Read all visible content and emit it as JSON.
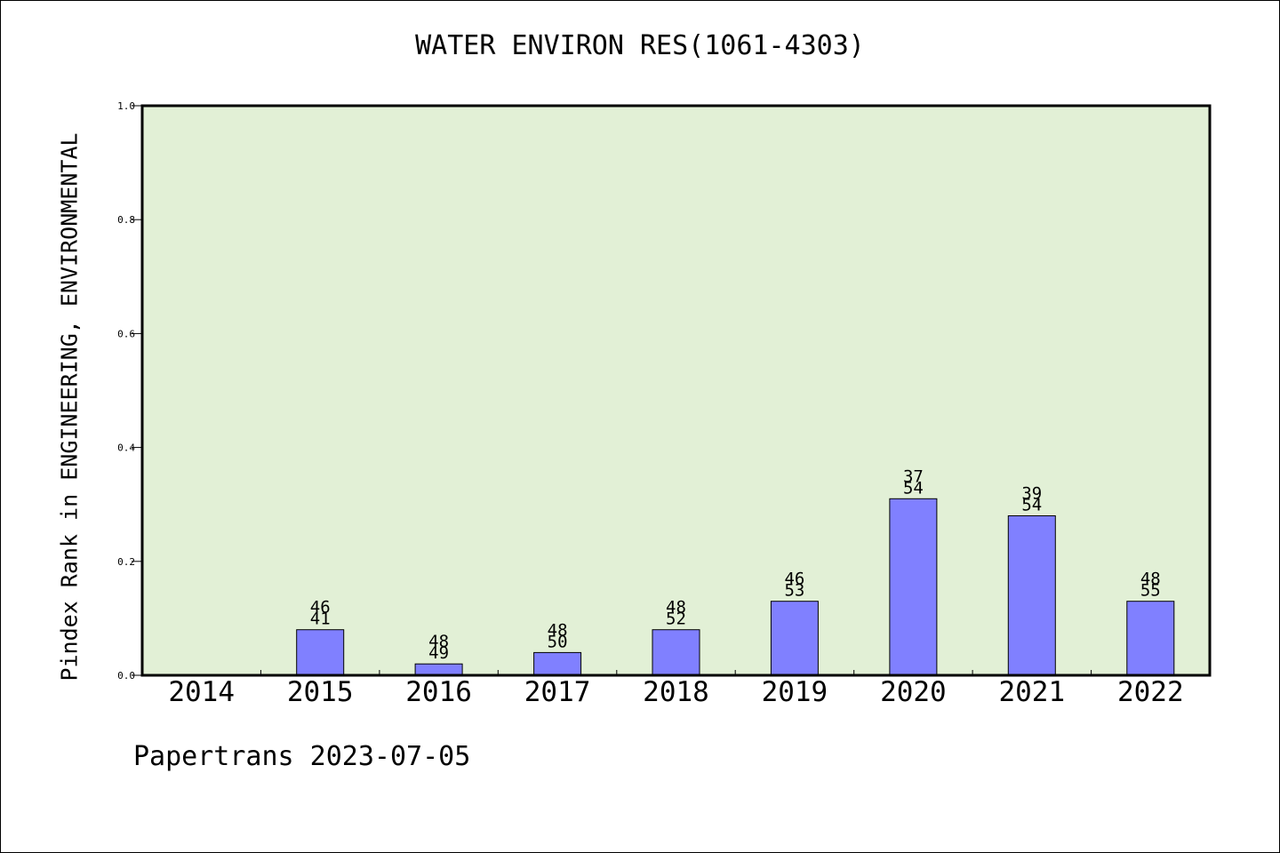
{
  "chart_data": {
    "type": "bar",
    "title": "WATER ENVIRON RES(1061-4303)",
    "xlabel": "",
    "ylabel": "Pindex Rank in ENGINEERING, ENVIRONMENTAL",
    "categories": [
      "2014",
      "2015",
      "2016",
      "2017",
      "2018",
      "2019",
      "2020",
      "2021",
      "2022"
    ],
    "values": [
      0,
      0.08,
      0.02,
      0.04,
      0.08,
      0.13,
      0.31,
      0.28,
      0.13
    ],
    "bar_labels": [
      [],
      [
        "46",
        "41"
      ],
      [
        "48",
        "49"
      ],
      [
        "48",
        "50"
      ],
      [
        "48",
        "52"
      ],
      [
        "46",
        "53"
      ],
      [
        "37",
        "54"
      ],
      [
        "39",
        "54"
      ],
      [
        "48",
        "55"
      ]
    ],
    "ylim": [
      0.0,
      1.0
    ],
    "yticks": [
      "0.0",
      "0.2",
      "0.4",
      "0.6",
      "0.8",
      "1.0"
    ],
    "grid": false,
    "colors": {
      "bar_fill": "#8080ff",
      "plot_background": "#e2f0d6",
      "axis": "#000000"
    }
  },
  "footer": "Papertrans 2023-07-05"
}
